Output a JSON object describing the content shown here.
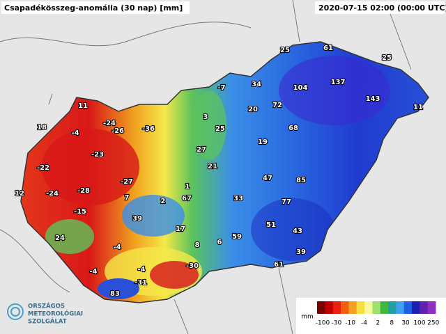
{
  "header": {
    "title": "Csapadékösszeg-anomália (30 nap) [mm]",
    "timestamp": "2020-07-15 02:00 (00:00 UTC)"
  },
  "stations": [
    11,
    18,
    -4,
    -24,
    -26,
    -36,
    -23,
    -22,
    -24,
    -28,
    -27,
    7,
    -15,
    12,
    -7,
    34,
    25,
    61,
    25,
    104,
    137,
    143,
    11,
    20,
    72,
    3,
    25,
    68,
    19,
    27,
    21,
    47,
    85,
    1,
    67,
    2,
    33,
    77,
    39,
    17,
    51,
    43,
    24,
    -4,
    8,
    6,
    59,
    39,
    -4,
    -4,
    -30,
    -31,
    61,
    83
  ],
  "legend": {
    "unit": "mm",
    "labels": [
      -100,
      -30,
      -10,
      -4,
      2,
      8,
      30,
      100,
      250
    ]
  },
  "logo": {
    "lines": [
      "ORSZÁGOS",
      "METEOROLÓGIAI",
      "SZOLGÁLAT"
    ]
  }
}
